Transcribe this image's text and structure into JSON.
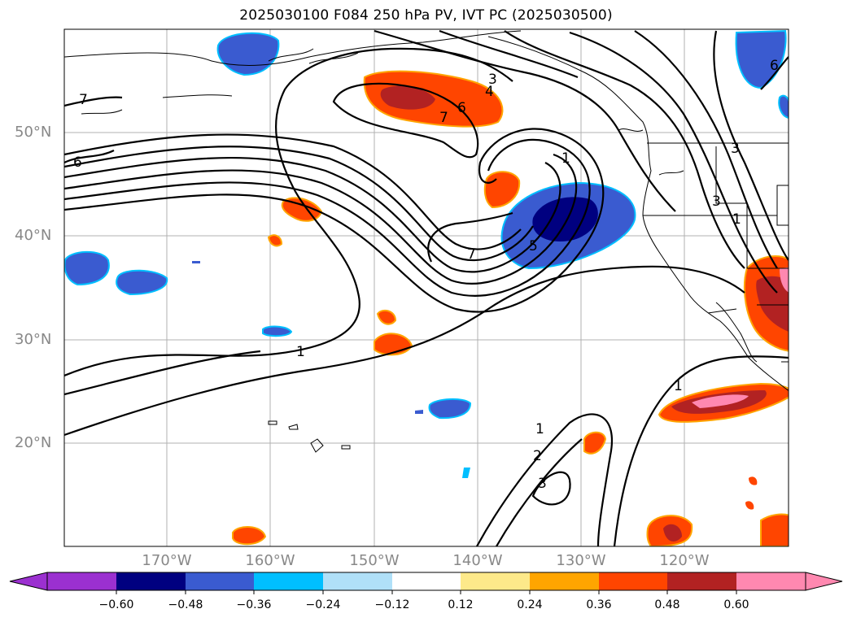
{
  "title": "2025030100 F084 250 hPa PV, IVT PC (2025030500)",
  "lat_labels": [
    "50°N",
    "40°N",
    "30°N",
    "20°N"
  ],
  "lon_labels": [
    "170°W",
    "160°W",
    "150°W",
    "140°W",
    "130°W",
    "120°W"
  ],
  "colorbar": {
    "ticks": [
      "−0.60",
      "−0.48",
      "−0.36",
      "−0.24",
      "−0.12",
      "0.12",
      "0.24",
      "0.36",
      "0.48",
      "0.60"
    ],
    "colors": [
      "#9b30d0",
      "#000080",
      "#3a5bd0",
      "#00bfff",
      "#b0e0f8",
      "#ffffff",
      "#fde98a",
      "#ffa500",
      "#ff4500",
      "#b22222",
      "#ff88b0",
      "#ff88b0"
    ]
  },
  "contour_labels": [
    "7",
    "6",
    "3",
    "4",
    "6",
    "7",
    "1",
    "7",
    "5",
    "1",
    "1",
    "2",
    "3",
    "1",
    "3",
    "3",
    "1",
    "6"
  ]
}
